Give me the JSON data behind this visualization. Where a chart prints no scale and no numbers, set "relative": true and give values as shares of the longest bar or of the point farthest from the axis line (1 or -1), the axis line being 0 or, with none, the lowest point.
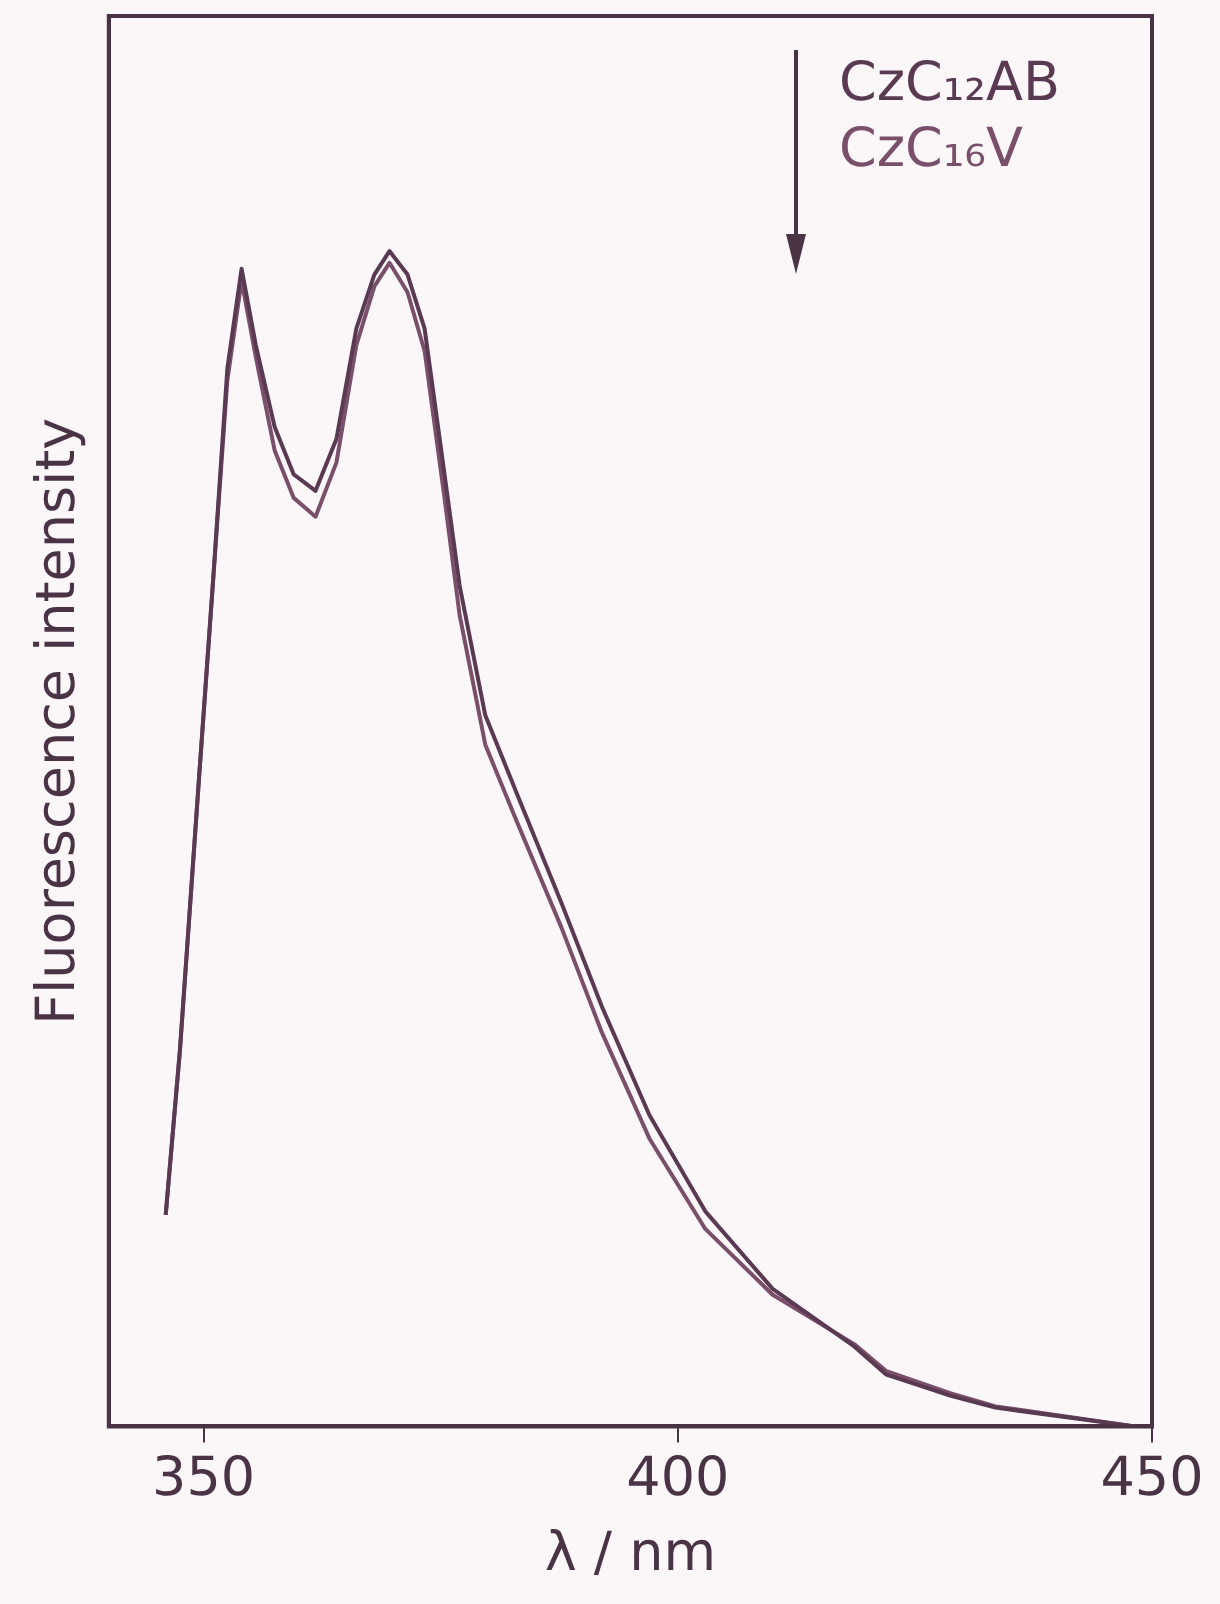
{
  "chart_data": {
    "type": "line",
    "xlabel": "λ / nm",
    "ylabel": "Fluorescence intensity",
    "relative": true,
    "xlim": [
      340,
      450
    ],
    "xticks": [
      350,
      400,
      450
    ],
    "legend": "top right",
    "marker": "none",
    "line_style": "solid",
    "grid": false,
    "series": [
      {
        "name": "CzC₁₂AB",
        "color": "#5a3a52",
        "x": [
          346.0,
          347.5,
          349.5,
          351.0,
          352.5,
          354.0,
          355.5,
          357.5,
          359.5,
          361.8,
          364.0,
          366.1,
          368.0,
          369.6,
          371.5,
          373.3,
          375.4,
          377.0,
          379.7,
          383.0,
          387.7,
          392.0,
          397.0,
          402.9,
          410.0,
          418.6,
          422.0,
          428.8,
          433.5,
          448.2
        ],
        "values": [
          0.18,
          0.32,
          0.55,
          0.72,
          0.9,
          0.985,
          0.92,
          0.85,
          0.81,
          0.796,
          0.84,
          0.934,
          0.98,
          1.0,
          0.98,
          0.934,
          0.81,
          0.715,
          0.605,
          0.539,
          0.446,
          0.357,
          0.265,
          0.183,
          0.117,
          0.068,
          0.044,
          0.026,
          0.016,
          0.0
        ]
      },
      {
        "name": "CzC₁₆V",
        "color": "#7a4f6a",
        "x": [
          346.0,
          347.5,
          349.5,
          351.0,
          352.5,
          354.0,
          355.5,
          357.5,
          359.5,
          361.8,
          364.0,
          366.1,
          368.0,
          369.6,
          371.5,
          373.3,
          375.4,
          377.0,
          379.7,
          383.0,
          387.7,
          392.0,
          397.0,
          402.9,
          410.0,
          418.6,
          422.0,
          428.8,
          433.5,
          448.2
        ],
        "values": [
          0.18,
          0.32,
          0.55,
          0.72,
          0.89,
          0.975,
          0.91,
          0.83,
          0.79,
          0.774,
          0.82,
          0.92,
          0.97,
          0.99,
          0.965,
          0.915,
          0.79,
          0.69,
          0.58,
          0.515,
          0.425,
          0.335,
          0.245,
          0.168,
          0.112,
          0.07,
          0.047,
          0.028,
          0.017,
          0.0
        ]
      }
    ]
  }
}
